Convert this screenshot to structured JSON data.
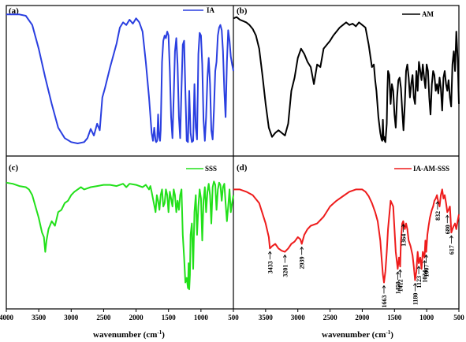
{
  "figure": {
    "xlabel_text": "wavenumber (cm",
    "xlabel_sup": "-1",
    "xlabel_close": ")"
  },
  "chart_data": [
    {
      "type": "line",
      "panel": "(a)",
      "series": [
        {
          "name": "IA",
          "color": "#2a3fe0",
          "x": [
            4000,
            3800,
            3700,
            3600,
            3500,
            3400,
            3300,
            3200,
            3100,
            3000,
            2900,
            2800,
            2750,
            2700,
            2650,
            2600,
            2560,
            2520,
            2480,
            2400,
            2300,
            2250,
            2200,
            2150,
            2100,
            2050,
            2000,
            1950,
            1900,
            1850,
            1800,
            1760,
            1740,
            1720,
            1700,
            1690,
            1675,
            1660,
            1645,
            1630,
            1620,
            1600,
            1580,
            1560,
            1540,
            1520,
            1500,
            1480,
            1460,
            1440,
            1420,
            1400,
            1380,
            1360,
            1340,
            1320,
            1300,
            1280,
            1260,
            1240,
            1220,
            1200,
            1180,
            1160,
            1140,
            1120,
            1100,
            1080,
            1060,
            1040,
            1020,
            1000,
            980,
            960,
            940,
            920,
            900,
            880,
            860,
            840,
            820,
            800,
            780,
            760,
            740,
            720,
            700,
            680,
            660,
            640,
            620,
            600,
            580,
            560,
            540,
            520,
            500
          ],
          "y": [
            98,
            98,
            97,
            90,
            72,
            50,
            30,
            12,
            4,
            1,
            0,
            1,
            4,
            11,
            6,
            15,
            10,
            35,
            42,
            58,
            76,
            88,
            92,
            90,
            94,
            91,
            95,
            92,
            85,
            62,
            35,
            8,
            2,
            12,
            2,
            1,
            2,
            22,
            5,
            2,
            10,
            62,
            78,
            82,
            80,
            85,
            82,
            55,
            20,
            4,
            35,
            70,
            80,
            60,
            20,
            4,
            42,
            75,
            78,
            40,
            2,
            1,
            40,
            8,
            1,
            2,
            45,
            12,
            3,
            68,
            84,
            82,
            60,
            18,
            2,
            20,
            50,
            65,
            45,
            10,
            3,
            25,
            55,
            62,
            82,
            88,
            90,
            86,
            70,
            40,
            20,
            62,
            86,
            78,
            66,
            60,
            55
          ]
        }
      ],
      "xlim": [
        4000,
        500
      ],
      "ylim": [
        0,
        100
      ]
    },
    {
      "type": "line",
      "panel": "(b)",
      "series": [
        {
          "name": "AM",
          "color": "#000000",
          "x": [
            4000,
            3950,
            3900,
            3850,
            3800,
            3750,
            3700,
            3650,
            3600,
            3550,
            3500,
            3450,
            3400,
            3350,
            3300,
            3250,
            3200,
            3150,
            3100,
            3050,
            3000,
            2950,
            2900,
            2850,
            2800,
            2750,
            2700,
            2650,
            2600,
            2550,
            2500,
            2450,
            2400,
            2350,
            2300,
            2250,
            2200,
            2150,
            2100,
            2050,
            2000,
            1950,
            1900,
            1850,
            1820,
            1800,
            1780,
            1750,
            1720,
            1700,
            1690,
            1680,
            1670,
            1660,
            1650,
            1640,
            1620,
            1610,
            1600,
            1580,
            1560,
            1540,
            1520,
            1500,
            1480,
            1460,
            1440,
            1420,
            1400,
            1380,
            1360,
            1340,
            1320,
            1300,
            1280,
            1260,
            1240,
            1220,
            1200,
            1180,
            1160,
            1140,
            1120,
            1100,
            1080,
            1060,
            1040,
            1020,
            1000,
            980,
            960,
            940,
            920,
            900,
            880,
            860,
            840,
            820,
            800,
            780,
            760,
            740,
            720,
            700,
            680,
            660,
            640,
            620,
            600,
            580,
            560,
            540,
            520,
            500
          ],
          "y": [
            95,
            96,
            94,
            93,
            92,
            90,
            87,
            82,
            72,
            52,
            30,
            12,
            5,
            8,
            10,
            8,
            6,
            15,
            40,
            50,
            65,
            72,
            68,
            62,
            58,
            45,
            60,
            58,
            72,
            75,
            78,
            82,
            85,
            88,
            90,
            92,
            90,
            91,
            89,
            92,
            90,
            88,
            75,
            58,
            60,
            48,
            40,
            20,
            8,
            3,
            2,
            18,
            3,
            5,
            2,
            1,
            15,
            40,
            55,
            52,
            30,
            45,
            40,
            22,
            12,
            35,
            48,
            50,
            42,
            25,
            10,
            30,
            55,
            60,
            50,
            35,
            45,
            52,
            35,
            30,
            55,
            40,
            62,
            55,
            48,
            60,
            50,
            42,
            60,
            55,
            35,
            22,
            45,
            55,
            52,
            40,
            45,
            38,
            50,
            42,
            25,
            50,
            55,
            45,
            40,
            48,
            35,
            28,
            60,
            70,
            55,
            85,
            65,
            30
          ]
        }
      ],
      "xlim": [
        4000,
        500
      ],
      "ylim": [
        0,
        100
      ]
    },
    {
      "type": "line",
      "panel": "(c)",
      "series": [
        {
          "name": "SSS",
          "color": "#22e01a",
          "x": [
            4000,
            3900,
            3800,
            3700,
            3650,
            3600,
            3550,
            3500,
            3450,
            3420,
            3400,
            3380,
            3350,
            3300,
            3250,
            3200,
            3150,
            3100,
            3050,
            3000,
            2950,
            2900,
            2850,
            2800,
            2700,
            2600,
            2500,
            2400,
            2300,
            2200,
            2150,
            2100,
            2000,
            1900,
            1850,
            1800,
            1780,
            1760,
            1700,
            1680,
            1660,
            1640,
            1620,
            1600,
            1580,
            1560,
            1540,
            1520,
            1500,
            1480,
            1460,
            1440,
            1420,
            1400,
            1380,
            1360,
            1340,
            1320,
            1300,
            1280,
            1260,
            1240,
            1220,
            1200,
            1190,
            1180,
            1170,
            1160,
            1140,
            1120,
            1100,
            1080,
            1060,
            1040,
            1020,
            1000,
            980,
            960,
            940,
            920,
            900,
            880,
            860,
            840,
            820,
            800,
            780,
            760,
            740,
            720,
            700,
            680,
            660,
            640,
            620,
            600,
            580,
            560,
            540,
            520,
            500
          ],
          "y": [
            96,
            95,
            93,
            92,
            90,
            85,
            75,
            65,
            52,
            48,
            35,
            45,
            55,
            62,
            58,
            70,
            72,
            78,
            80,
            85,
            88,
            90,
            92,
            90,
            92,
            93,
            94,
            94,
            93,
            95,
            92,
            95,
            94,
            92,
            94,
            90,
            93,
            88,
            70,
            85,
            80,
            72,
            85,
            90,
            75,
            78,
            90,
            85,
            70,
            88,
            82,
            75,
            90,
            85,
            70,
            80,
            72,
            85,
            90,
            50,
            30,
            8,
            12,
            3,
            25,
            2,
            15,
            50,
            60,
            20,
            70,
            85,
            50,
            75,
            90,
            82,
            45,
            80,
            92,
            70,
            88,
            95,
            85,
            60,
            92,
            97,
            94,
            72,
            90,
            96,
            94,
            80,
            92,
            95,
            78,
            62,
            75,
            90,
            70,
            78,
            85
          ]
        }
      ],
      "xlim": [
        4000,
        500
      ],
      "ylim": [
        0,
        100
      ]
    },
    {
      "type": "line",
      "panel": "(d)",
      "series": [
        {
          "name": "IA-AM-SSS",
          "color": "#ee1c1c",
          "x": [
            4000,
            3900,
            3800,
            3700,
            3600,
            3500,
            3450,
            3433,
            3400,
            3350,
            3300,
            3250,
            3201,
            3150,
            3100,
            3050,
            3000,
            2960,
            2939,
            2900,
            2850,
            2800,
            2700,
            2600,
            2500,
            2400,
            2300,
            2200,
            2100,
            2000,
            1950,
            1900,
            1850,
            1800,
            1760,
            1720,
            1700,
            1680,
            1663,
            1640,
            1620,
            1600,
            1560,
            1520,
            1500,
            1480,
            1450,
            1430,
            1412,
            1400,
            1380,
            1364,
            1340,
            1320,
            1300,
            1280,
            1250,
            1220,
            1200,
            1180,
            1160,
            1140,
            1123,
            1100,
            1080,
            1060,
            1034,
            1020,
            1007,
            990,
            970,
            950,
            920,
            900,
            880,
            860,
            840,
            832,
            800,
            780,
            760,
            740,
            720,
            700,
            680,
            660,
            640,
            630,
            617,
            600,
            580,
            560,
            540,
            520,
            500
          ],
          "y": [
            90,
            90,
            88,
            85,
            78,
            60,
            48,
            38,
            40,
            42,
            38,
            36,
            35,
            38,
            42,
            44,
            48,
            46,
            42,
            50,
            55,
            58,
            60,
            66,
            75,
            80,
            84,
            88,
            90,
            90,
            88,
            84,
            78,
            70,
            62,
            45,
            30,
            15,
            8,
            18,
            35,
            55,
            80,
            75,
            55,
            35,
            20,
            30,
            22,
            45,
            60,
            62,
            55,
            60,
            55,
            45,
            40,
            32,
            22,
            10,
            18,
            35,
            25,
            30,
            20,
            35,
            30,
            45,
            35,
            50,
            58,
            65,
            72,
            75,
            80,
            82,
            85,
            82,
            75,
            85,
            90,
            82,
            85,
            78,
            70,
            72,
            75,
            65,
            52,
            55,
            58,
            60,
            55,
            62,
            68
          ]
        }
      ],
      "xlim": [
        4000,
        500
      ],
      "ylim": [
        0,
        100
      ],
      "annotations": [
        "3433",
        "3201",
        "2939",
        "1663",
        "1450",
        "1412",
        "1364",
        "1180",
        "1123",
        "1034",
        "1007",
        "832",
        "680",
        "617"
      ]
    }
  ],
  "x_ticks": [
    "4000",
    "3500",
    "3000",
    "2500",
    "2000",
    "1500",
    "1000",
    "500"
  ],
  "x_ticks_right": [
    "3500",
    "3000",
    "2500",
    "2000",
    "1500",
    "1000",
    "500"
  ]
}
